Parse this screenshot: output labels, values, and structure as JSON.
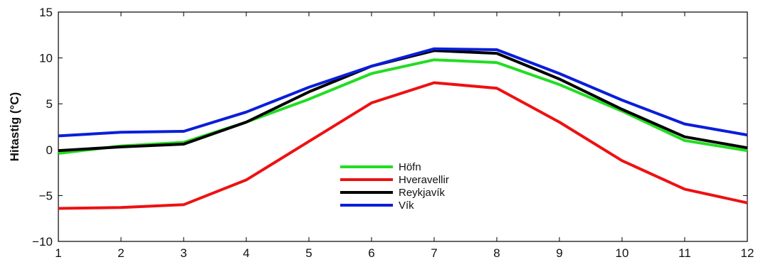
{
  "chart_data": {
    "type": "line",
    "ylabel": "Hitastig (°C)",
    "xlabel": "",
    "x": [
      1,
      2,
      3,
      4,
      5,
      6,
      7,
      8,
      9,
      10,
      11,
      12
    ],
    "xlim": [
      1,
      12
    ],
    "ylim": [
      -10,
      15
    ],
    "xticks": [
      1,
      2,
      3,
      4,
      5,
      6,
      7,
      8,
      9,
      10,
      11,
      12
    ],
    "yticks": [
      -10,
      -5,
      0,
      5,
      10,
      15
    ],
    "grid": false,
    "legend_position": "center-lower",
    "series": [
      {
        "name": "Höfn",
        "color": "#22dd22",
        "values": [
          -0.4,
          0.4,
          0.8,
          3.0,
          5.5,
          8.3,
          9.8,
          9.5,
          7.1,
          4.2,
          1.0,
          -0.1
        ]
      },
      {
        "name": "Hveravellir",
        "color": "#ee1111",
        "values": [
          -6.4,
          -6.3,
          -6.0,
          -3.3,
          0.9,
          5.1,
          7.3,
          6.7,
          3.0,
          -1.2,
          -4.3,
          -5.8
        ]
      },
      {
        "name": "Reykjavík",
        "color": "#000000",
        "values": [
          -0.1,
          0.3,
          0.6,
          3.0,
          6.3,
          9.1,
          10.8,
          10.5,
          7.7,
          4.4,
          1.4,
          0.2
        ]
      },
      {
        "name": "Vík",
        "color": "#0a1ed9",
        "values": [
          1.5,
          1.9,
          2.0,
          4.1,
          6.8,
          9.1,
          11.0,
          10.9,
          8.3,
          5.4,
          2.8,
          1.6
        ]
      }
    ]
  }
}
